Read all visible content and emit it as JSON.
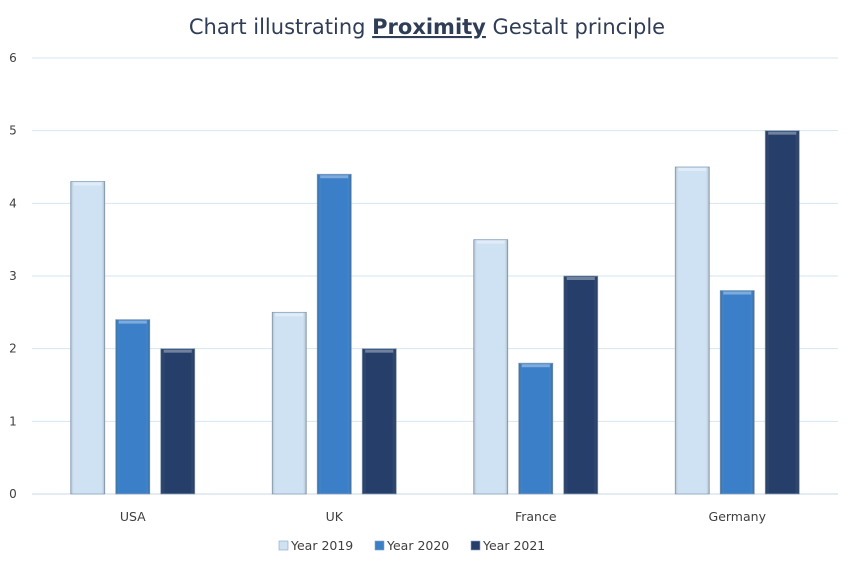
{
  "chart_data": {
    "type": "bar",
    "title_parts": [
      {
        "text": "Chart illustrating ",
        "bold": false
      },
      {
        "text": "Proximity",
        "bold": true
      },
      {
        "text": " Gestalt principle",
        "bold": false
      }
    ],
    "categories": [
      "USA",
      "UK",
      "France",
      "Germany"
    ],
    "series": [
      {
        "name": "Year 2019",
        "color": "#cfe2f3",
        "values": [
          4.3,
          2.5,
          3.5,
          4.5
        ]
      },
      {
        "name": "Year 2020",
        "color": "#3a7fc8",
        "values": [
          2.4,
          4.4,
          1.8,
          2.8
        ]
      },
      {
        "name": "Year 2021",
        "color": "#263f6a",
        "values": [
          2.0,
          2.0,
          3.0,
          5.0
        ]
      }
    ],
    "ylim": [
      0,
      6
    ],
    "yticks": [
      0,
      1,
      2,
      3,
      4,
      5,
      6
    ],
    "grid": true,
    "legend_position": "bottom",
    "colors": {
      "title": "#2f3d56",
      "grid": "#d6e6f0",
      "text": "#404040"
    }
  }
}
